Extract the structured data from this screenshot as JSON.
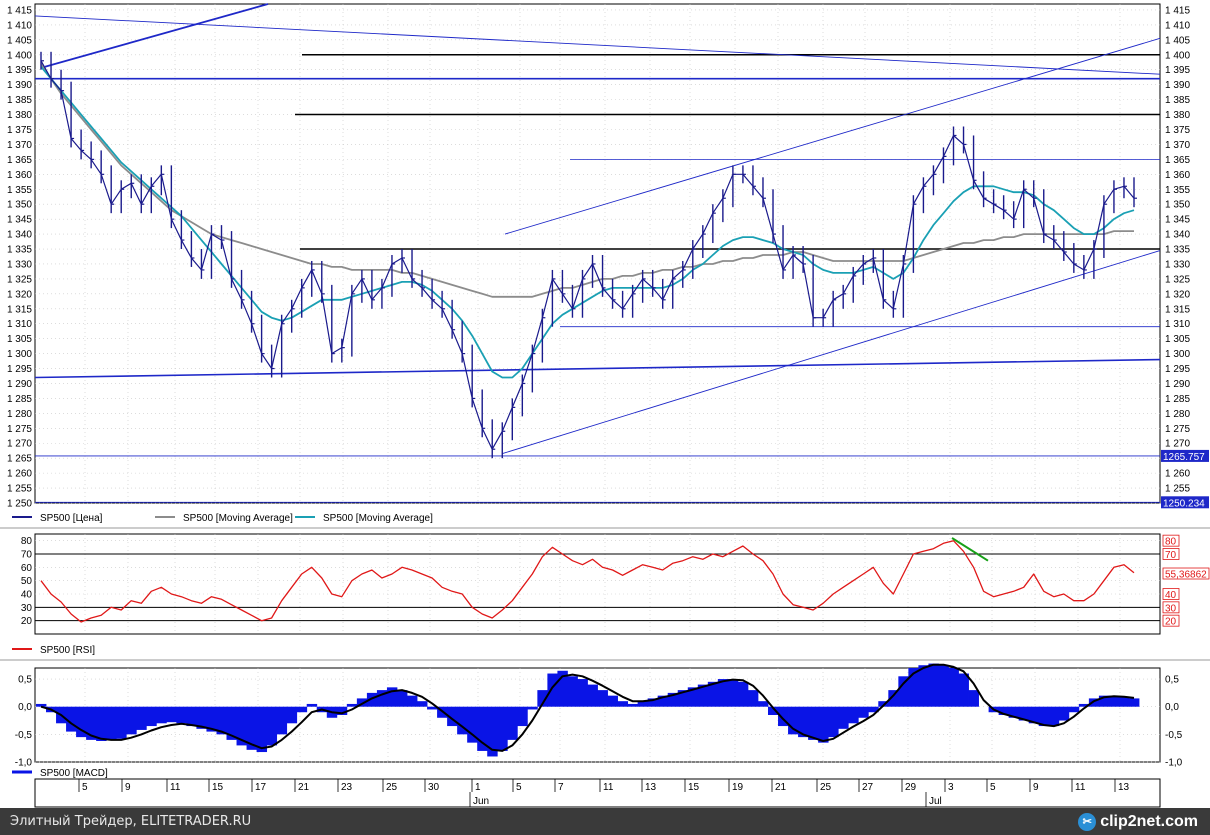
{
  "colors": {
    "price": "#1a1a8c",
    "ma_slow": "#8c8c8c",
    "ma_fast": "#1aa0b4",
    "rsi": "#e01818",
    "macd_hist": "#0a14e6",
    "macd_signal": "#000000",
    "trendline": "#1e28c8",
    "level": "#000000",
    "price_tag_bg": "#1e28c8",
    "rsi_tag": "#e01818"
  },
  "chart_data": [
    {
      "type": "line",
      "panel": "price",
      "series": [
        {
          "name": "SP500 [Цена]",
          "values": [
            1398,
            1392,
            1388,
            1372,
            1368,
            1365,
            1360,
            1350,
            1355,
            1357,
            1350,
            1356,
            1360,
            1345,
            1338,
            1332,
            1328,
            1340,
            1338,
            1325,
            1318,
            1310,
            1300,
            1295,
            1310,
            1315,
            1322,
            1328,
            1320,
            1300,
            1302,
            1320,
            1325,
            1318,
            1322,
            1330,
            1332,
            1325,
            1322,
            1318,
            1315,
            1308,
            1300,
            1285,
            1275,
            1268,
            1274,
            1282,
            1290,
            1300,
            1312,
            1325,
            1320,
            1315,
            1325,
            1330,
            1322,
            1318,
            1315,
            1320,
            1325,
            1322,
            1318,
            1325,
            1328,
            1335,
            1340,
            1347,
            1352,
            1360,
            1360,
            1356,
            1352,
            1340,
            1328,
            1333,
            1330,
            1312,
            1312,
            1318,
            1320,
            1326,
            1330,
            1332,
            1318,
            1315,
            1330,
            1350,
            1356,
            1360,
            1366,
            1373,
            1370,
            1358,
            1352,
            1350,
            1348,
            1345,
            1355,
            1352,
            1340,
            1338,
            1334,
            1330,
            1328,
            1335,
            1350,
            1355,
            1356,
            1352
          ]
        },
        {
          "name": "SP500 [Moving Average]",
          "values": [
            1397,
            1392,
            1387,
            1383,
            1379,
            1375,
            1371,
            1367,
            1363,
            1360,
            1357,
            1354,
            1351,
            1348,
            1346,
            1344,
            1342,
            1340,
            1339,
            1338,
            1337,
            1336,
            1335,
            1334,
            1333,
            1332,
            1331,
            1330,
            1330,
            1329,
            1329,
            1328,
            1328,
            1328,
            1328,
            1328,
            1327,
            1327,
            1326,
            1325,
            1324,
            1323,
            1322,
            1321,
            1320,
            1319,
            1319,
            1319,
            1319,
            1319,
            1320,
            1321,
            1322,
            1322,
            1323,
            1324,
            1325,
            1325,
            1326,
            1326,
            1327,
            1327,
            1328,
            1328,
            1329,
            1329,
            1330,
            1330,
            1331,
            1331,
            1332,
            1332,
            1333,
            1333,
            1333,
            1334,
            1334,
            1333,
            1332,
            1331,
            1331,
            1331,
            1331,
            1331,
            1331,
            1331,
            1331,
            1332,
            1333,
            1334,
            1335,
            1336,
            1337,
            1337,
            1338,
            1338,
            1339,
            1339,
            1340,
            1340,
            1340,
            1340,
            1340,
            1340,
            1340,
            1340,
            1340,
            1341,
            1341,
            1341
          ]
        },
        {
          "name": "SP500 [Moving Average]",
          "values": [
            1396,
            1392,
            1388,
            1384,
            1380,
            1376,
            1372,
            1368,
            1364,
            1361,
            1358,
            1355,
            1352,
            1349,
            1346,
            1342,
            1338,
            1334,
            1330,
            1326,
            1322,
            1318,
            1314,
            1312,
            1311,
            1312,
            1314,
            1316,
            1318,
            1318,
            1318,
            1319,
            1320,
            1321,
            1322,
            1323,
            1324,
            1324,
            1323,
            1321,
            1318,
            1315,
            1311,
            1306,
            1300,
            1294,
            1292,
            1292,
            1295,
            1300,
            1305,
            1310,
            1313,
            1315,
            1317,
            1319,
            1321,
            1322,
            1322,
            1322,
            1322,
            1322,
            1322,
            1323,
            1325,
            1328,
            1330,
            1333,
            1336,
            1338,
            1339,
            1339,
            1338,
            1337,
            1335,
            1334,
            1333,
            1330,
            1328,
            1327,
            1327,
            1327,
            1328,
            1329,
            1327,
            1325,
            1327,
            1332,
            1338,
            1343,
            1347,
            1351,
            1354,
            1356,
            1356,
            1356,
            1355,
            1354,
            1354,
            1353,
            1350,
            1348,
            1345,
            1342,
            1340,
            1340,
            1342,
            1345,
            1347,
            1348
          ]
        }
      ],
      "ylim": [
        1250,
        1417
      ],
      "hlines": [
        1400,
        1380,
        1335,
        1309,
        1365,
        1392,
        1265.757,
        1250.234
      ],
      "tick_labels": [
        "1 415",
        "1 410",
        "1 405",
        "1 400",
        "1 395",
        "1 390",
        "1 385",
        "1 380",
        "1 375",
        "1 370",
        "1 365",
        "1 360",
        "1 355",
        "1 350",
        "1 345",
        "1 340",
        "1 335",
        "1 330",
        "1 325",
        "1 320",
        "1 315",
        "1 310",
        "1 305",
        "1 300",
        "1 295",
        "1 290",
        "1 285",
        "1 280",
        "1 275",
        "1 270",
        "1 265",
        "1 260",
        "1 255",
        "1 250"
      ],
      "price_tags": [
        "1265.757",
        "1250.234"
      ],
      "legend": [
        "SP500 [Цена]",
        "SP500 [Moving Average]",
        "SP500 [Moving Average]"
      ],
      "grid": true
    },
    {
      "type": "line",
      "panel": "rsi",
      "series": [
        {
          "name": "SP500 [RSI]",
          "values": [
            50,
            40,
            34,
            25,
            19,
            22,
            24,
            30,
            28,
            35,
            33,
            42,
            45,
            40,
            38,
            35,
            33,
            38,
            36,
            32,
            28,
            24,
            20,
            22,
            35,
            45,
            55,
            60,
            52,
            40,
            38,
            50,
            55,
            58,
            52,
            55,
            60,
            58,
            55,
            52,
            45,
            42,
            40,
            30,
            25,
            22,
            28,
            35,
            45,
            55,
            68,
            75,
            70,
            65,
            62,
            66,
            60,
            58,
            54,
            58,
            62,
            60,
            58,
            63,
            65,
            68,
            66,
            70,
            68,
            72,
            76,
            70,
            65,
            55,
            40,
            32,
            30,
            28,
            33,
            40,
            45,
            50,
            55,
            60,
            48,
            40,
            55,
            70,
            72,
            74,
            78,
            80,
            72,
            60,
            42,
            38,
            40,
            42,
            45,
            55,
            42,
            38,
            40,
            35,
            35,
            40,
            50,
            60,
            62,
            56
          ]
        }
      ],
      "ylim": [
        10,
        85
      ],
      "hlines": [
        70,
        30,
        20
      ],
      "tick_labels": [
        "80",
        "70",
        "60",
        "50",
        "40",
        "30",
        "20"
      ],
      "right_tags": [
        "80",
        "70",
        "55,36862",
        "40",
        "30",
        "20"
      ],
      "legend": [
        "SP500 [RSI]"
      ],
      "grid": true
    },
    {
      "type": "bar",
      "panel": "macd",
      "series": [
        {
          "name": "SP500 [MACD]",
          "values": [
            0.05,
            -0.1,
            -0.3,
            -0.45,
            -0.55,
            -0.6,
            -0.62,
            -0.6,
            -0.58,
            -0.5,
            -0.42,
            -0.35,
            -0.3,
            -0.28,
            -0.3,
            -0.35,
            -0.4,
            -0.45,
            -0.5,
            -0.6,
            -0.7,
            -0.78,
            -0.82,
            -0.7,
            -0.5,
            -0.3,
            -0.1,
            0.05,
            -0.1,
            -0.2,
            -0.15,
            0.05,
            0.15,
            0.25,
            0.3,
            0.35,
            0.3,
            0.2,
            0.1,
            -0.05,
            -0.2,
            -0.35,
            -0.5,
            -0.65,
            -0.8,
            -0.9,
            -0.8,
            -0.6,
            -0.35,
            -0.05,
            0.3,
            0.6,
            0.65,
            0.55,
            0.5,
            0.4,
            0.3,
            0.2,
            0.1,
            0.05,
            0.1,
            0.15,
            0.2,
            0.25,
            0.3,
            0.35,
            0.4,
            0.45,
            0.5,
            0.5,
            0.45,
            0.3,
            0.1,
            -0.15,
            -0.35,
            -0.5,
            -0.55,
            -0.6,
            -0.65,
            -0.55,
            -0.4,
            -0.3,
            -0.2,
            -0.1,
            0.1,
            0.3,
            0.55,
            0.7,
            0.75,
            0.78,
            0.75,
            0.7,
            0.6,
            0.3,
            0.0,
            -0.1,
            -0.15,
            -0.2,
            -0.25,
            -0.3,
            -0.35,
            -0.35,
            -0.25,
            -0.1,
            0.05,
            0.15,
            0.2,
            0.2,
            0.18,
            0.15
          ]
        },
        {
          "name": "signal",
          "values": [
            0.0,
            -0.05,
            -0.15,
            -0.3,
            -0.42,
            -0.52,
            -0.58,
            -0.6,
            -0.6,
            -0.56,
            -0.5,
            -0.43,
            -0.37,
            -0.33,
            -0.31,
            -0.33,
            -0.36,
            -0.4,
            -0.45,
            -0.52,
            -0.6,
            -0.68,
            -0.75,
            -0.72,
            -0.6,
            -0.45,
            -0.28,
            -0.1,
            -0.05,
            -0.1,
            -0.12,
            -0.05,
            0.05,
            0.15,
            0.22,
            0.28,
            0.3,
            0.25,
            0.18,
            0.06,
            -0.08,
            -0.22,
            -0.36,
            -0.5,
            -0.65,
            -0.78,
            -0.8,
            -0.7,
            -0.5,
            -0.25,
            0.05,
            0.35,
            0.55,
            0.58,
            0.55,
            0.47,
            0.38,
            0.28,
            0.18,
            0.1,
            0.1,
            0.12,
            0.17,
            0.21,
            0.26,
            0.31,
            0.36,
            0.41,
            0.46,
            0.49,
            0.48,
            0.38,
            0.2,
            -0.02,
            -0.22,
            -0.4,
            -0.5,
            -0.56,
            -0.62,
            -0.58,
            -0.47,
            -0.36,
            -0.26,
            -0.15,
            0.02,
            0.2,
            0.42,
            0.6,
            0.7,
            0.76,
            0.76,
            0.72,
            0.64,
            0.42,
            0.12,
            -0.05,
            -0.13,
            -0.18,
            -0.23,
            -0.28,
            -0.33,
            -0.35,
            -0.3,
            -0.18,
            -0.03,
            0.1,
            0.17,
            0.19,
            0.18,
            0.16
          ]
        }
      ],
      "ylim": [
        -1.0,
        0.7
      ],
      "tick_labels": [
        "0,5",
        "0,0",
        "-0,5",
        "-1,0"
      ],
      "legend": [
        "SP500 [MACD]"
      ],
      "grid": true
    }
  ],
  "x_axis": {
    "day_labels": [
      "5",
      "9",
      "11",
      "15",
      "17",
      "21",
      "23",
      "25",
      "30",
      "1",
      "5",
      "7",
      "11",
      "13",
      "15",
      "19",
      "21",
      "25",
      "27",
      "29",
      "3",
      "5",
      "9",
      "11",
      "13"
    ],
    "month_labels": [
      "Jun",
      "Jul"
    ]
  },
  "footer": {
    "text": "Элитный Трейдер, ELITETRADER.RU",
    "brand": "clip2net.com"
  }
}
